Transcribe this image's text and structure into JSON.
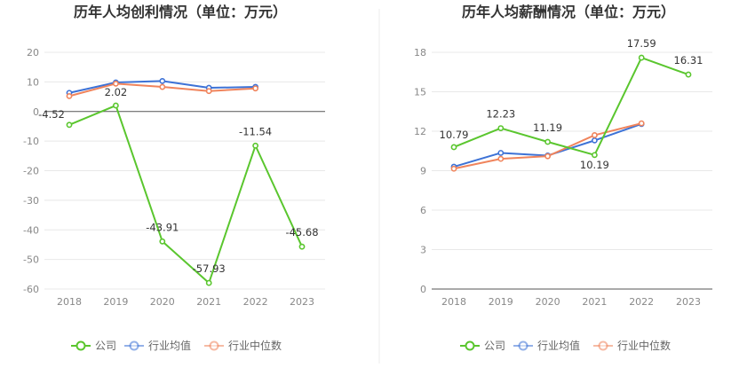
{
  "chart_data": [
    {
      "type": "line",
      "title": "历年人均创利情况（单位：万元）",
      "categories": [
        "2018",
        "2019",
        "2020",
        "2021",
        "2022",
        "2023"
      ],
      "ylim": [
        -60,
        20
      ],
      "yticks": [
        20,
        10,
        0,
        -10,
        -20,
        -30,
        -40,
        -50,
        -60
      ],
      "series": [
        {
          "name": "公司",
          "color": "#5ac62e",
          "values": [
            -4.52,
            2.02,
            -43.91,
            -57.93,
            -11.54,
            -45.68
          ],
          "labels": [
            "-4.52",
            "2.02",
            "-43.91",
            "-57.93",
            "-11.54",
            "-45.68"
          ]
        },
        {
          "name": "行业均值",
          "color": "#3d72d6",
          "values": [
            6.3,
            9.8,
            10.3,
            8.0,
            8.3,
            null
          ]
        },
        {
          "name": "行业中位数",
          "color": "#f0845c",
          "values": [
            5.2,
            9.4,
            8.3,
            6.9,
            7.8,
            null
          ]
        }
      ],
      "legend": [
        "公司",
        "行业均值",
        "行业中位数"
      ],
      "legend_position": "bottom"
    },
    {
      "type": "line",
      "title": "历年人均薪酬情况（单位：万元）",
      "categories": [
        "2018",
        "2019",
        "2020",
        "2021",
        "2022",
        "2023"
      ],
      "ylim": [
        0,
        18
      ],
      "yticks": [
        18,
        15,
        12,
        9,
        6,
        3,
        0
      ],
      "series": [
        {
          "name": "公司",
          "color": "#5ac62e",
          "values": [
            10.79,
            12.23,
            11.19,
            10.19,
            17.59,
            16.31
          ],
          "labels": [
            "10.79",
            "12.23",
            "11.19",
            "10.19",
            "17.59",
            "16.31"
          ]
        },
        {
          "name": "行业均值",
          "color": "#3d72d6",
          "values": [
            9.3,
            10.35,
            10.15,
            11.3,
            12.55,
            null
          ]
        },
        {
          "name": "行业中位数",
          "color": "#f0845c",
          "values": [
            9.15,
            9.9,
            10.1,
            11.7,
            12.6,
            null
          ]
        }
      ],
      "legend": [
        "公司",
        "行业均值",
        "行业中位数"
      ],
      "legend_position": "bottom"
    }
  ]
}
